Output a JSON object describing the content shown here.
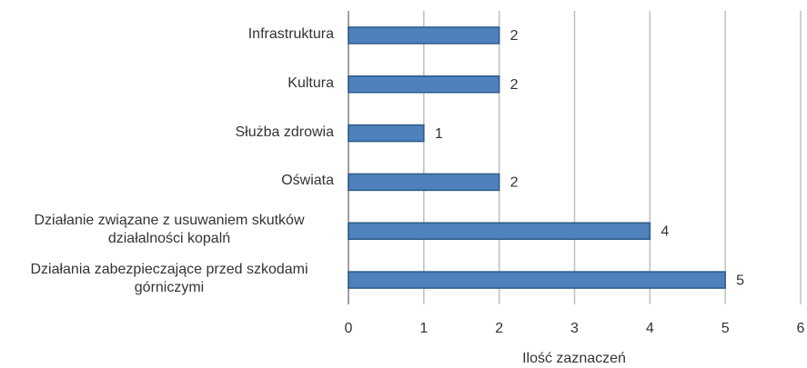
{
  "chart_data": {
    "type": "bar",
    "orientation": "horizontal",
    "categories": [
      "Infrastruktura",
      "Kultura",
      "Służba zdrowia",
      "Oświata",
      "Działanie związane z usuwaniem skutków działalności kopalń",
      "Działania zabezpieczające przed szkodami górniczymi"
    ],
    "values": [
      2,
      2,
      1,
      2,
      4,
      5
    ],
    "color": "#4f81bd",
    "xlabel": "Ilość zaznaczeń",
    "xlim": [
      0,
      6
    ],
    "xticks": [
      0,
      1,
      2,
      3,
      4,
      5,
      6
    ],
    "grid": true
  }
}
